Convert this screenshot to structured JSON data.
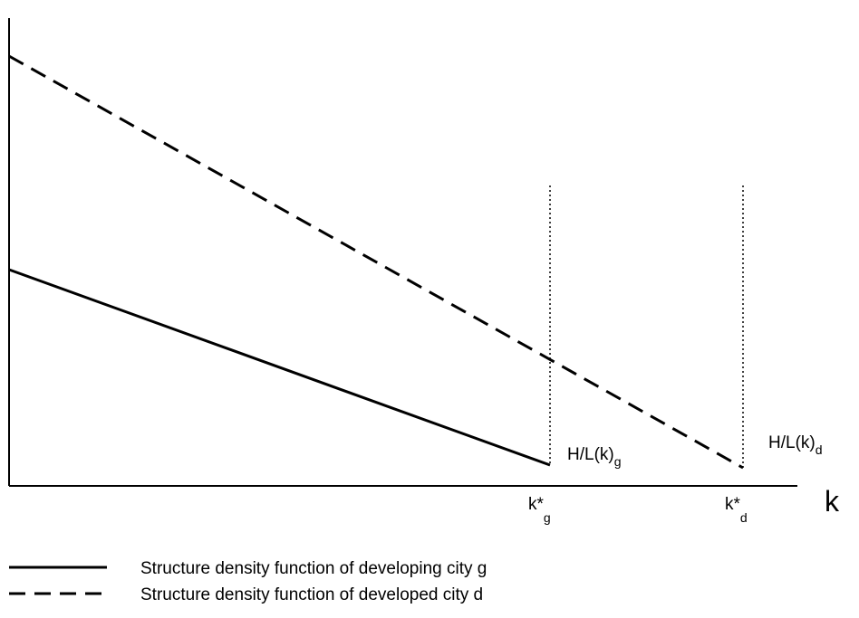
{
  "axis": {
    "x_label": "k"
  },
  "curves": [
    {
      "label": {
        "text": "H/L(k)",
        "subscript": "g"
      },
      "marker": {
        "text": "k*",
        "subscript": "g"
      }
    },
    {
      "label": {
        "text": "H/L(k)",
        "subscript": "d"
      },
      "marker": {
        "text": "k*",
        "subscript": "d"
      }
    }
  ],
  "legend": [
    "Structure density function of developing city g",
    "Structure density function of developed city d"
  ]
}
